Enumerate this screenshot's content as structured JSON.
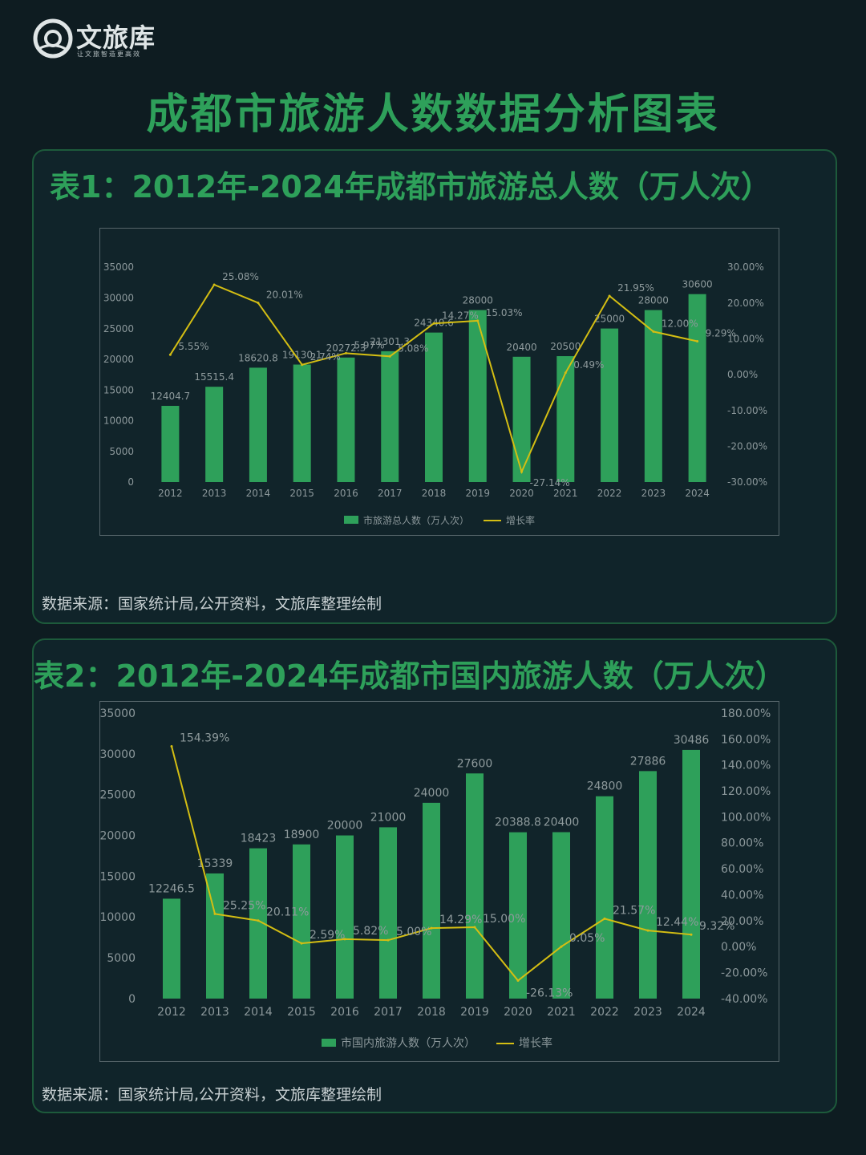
{
  "brand": {
    "name": "文旅库",
    "tagline": "让文旅智造更高效",
    "watermark_url": "wenlvcool.com"
  },
  "page_title": "成都市旅游人数数据分析图表",
  "colors": {
    "bar": "#2ea05a",
    "line": "#d4be13",
    "title": "#2ea05a",
    "axis_text": "#8c989b",
    "label_text": "#8e9a9c"
  },
  "charts": [
    {
      "title": "表1：2012年-2024年成都市旅游总人数（万人次）",
      "source": "数据来源：国家统计局,公开资料，文旅库整理绘制",
      "chart_data": {
        "type": "bar",
        "categories": [
          "2012",
          "2013",
          "2014",
          "2015",
          "2016",
          "2017",
          "2018",
          "2019",
          "2020",
          "2021",
          "2022",
          "2023",
          "2024"
        ],
        "series": [
          {
            "name": "市旅游总人数（万人次）",
            "type": "bar",
            "axis": "left",
            "values": [
              12404.7,
              15515.4,
              18620.8,
              19130.1,
              20272.3,
              21301.3,
              24340.6,
              28000,
              20400,
              20500,
              25000,
              28000,
              30600
            ],
            "labels": [
              "12404.7",
              "15515.4",
              "18620.8",
              "19130.1",
              "20272.3",
              "21301.3",
              "24340.6",
              "28000",
              "20400",
              "20500",
              "25000",
              "28000",
              "30600"
            ]
          },
          {
            "name": "增长率",
            "type": "line",
            "axis": "right",
            "values": [
              5.55,
              25.08,
              20.01,
              2.74,
              5.97,
              5.08,
              14.27,
              15.03,
              -27.14,
              0.49,
              21.95,
              12.0,
              9.29
            ],
            "labels": [
              "5.55%",
              "25.08%",
              "20.01%",
              "2.74%",
              "5.97%",
              "5.08%",
              "14.27%",
              "15.03%",
              "-27.14%",
              "0.49%",
              "21.95%",
              "12.00%",
              "9.29%"
            ]
          }
        ],
        "ylim": [
          0,
          35000
        ],
        "yticks": [
          "35000",
          "30000",
          "25000",
          "20000",
          "15000",
          "10000",
          "5000",
          "0"
        ],
        "y2lim": [
          -30,
          30
        ],
        "y2ticks": [
          "30.00%",
          "20.00%",
          "10.00%",
          "0.00%",
          "-10.00%",
          "-20.00%",
          "-30.00%"
        ],
        "legend": "bottom"
      }
    },
    {
      "title": "表2：2012年-2024年成都市国内旅游人数（万人次）",
      "source": "数据来源：国家统计局,公开资料，文旅库整理绘制",
      "chart_data": {
        "type": "bar",
        "categories": [
          "2012",
          "2013",
          "2014",
          "2015",
          "2016",
          "2017",
          "2018",
          "2019",
          "2020",
          "2021",
          "2022",
          "2023",
          "2024"
        ],
        "series": [
          {
            "name": "市国内旅游人数（万人次）",
            "type": "bar",
            "axis": "left",
            "values": [
              12246.5,
              15339,
              18423,
              18900,
              20000,
              21000,
              24000,
              27600,
              20388.8,
              20400,
              24800,
              27886,
              30486
            ],
            "labels": [
              "12246.5",
              "15339",
              "18423",
              "18900",
              "20000",
              "21000",
              "24000",
              "27600",
              "20388.8",
              "20400",
              "24800",
              "27886",
              "30486"
            ]
          },
          {
            "name": "增长率",
            "type": "line",
            "axis": "right",
            "values": [
              154.39,
              25.25,
              20.11,
              2.59,
              5.82,
              5.0,
              14.29,
              15.0,
              -26.13,
              0.05,
              21.57,
              12.44,
              9.32
            ],
            "labels": [
              "154.39%",
              "25.25%",
              "20.11%",
              "2.59%",
              "5.82%",
              "5.00%",
              "14.29%",
              "15.00%",
              "-26.13%",
              "0.05%",
              "21.57%",
              "12.44%",
              "9.32%"
            ]
          }
        ],
        "ylim": [
          0,
          35000
        ],
        "yticks": [
          "35000",
          "30000",
          "25000",
          "20000",
          "15000",
          "10000",
          "5000",
          "0"
        ],
        "y2lim": [
          -40,
          180
        ],
        "y2ticks": [
          "180.00%",
          "160.00%",
          "140.00%",
          "120.00%",
          "100.00%",
          "80.00%",
          "60.00%",
          "40.00%",
          "20.00%",
          "0.00%",
          "-20.00%",
          "-40.00%"
        ],
        "legend": "bottom"
      }
    }
  ]
}
